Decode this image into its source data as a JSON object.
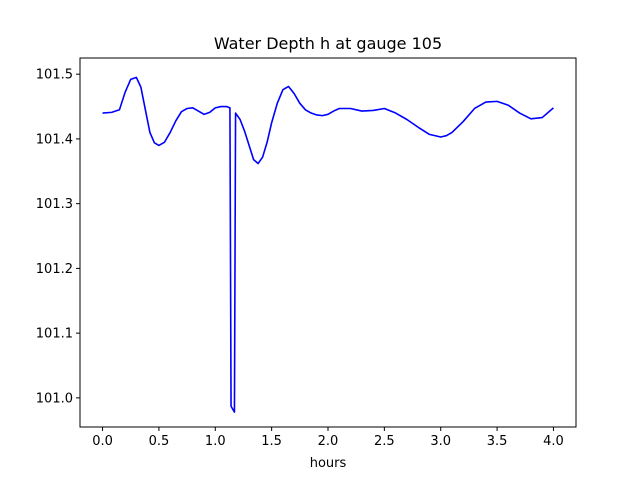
{
  "chart_data": {
    "type": "line",
    "title": "Water Depth h at gauge 105",
    "xlabel": "hours",
    "ylabel": "",
    "xlim": [
      -0.2,
      4.2
    ],
    "ylim": [
      100.955,
      101.525
    ],
    "xticks": [
      0.0,
      0.5,
      1.0,
      1.5,
      2.0,
      2.5,
      3.0,
      3.5,
      4.0
    ],
    "xtick_labels": [
      "0.0",
      "0.5",
      "1.0",
      "1.5",
      "2.0",
      "2.5",
      "3.0",
      "3.5",
      "4.0"
    ],
    "yticks": [
      101.0,
      101.1,
      101.2,
      101.3,
      101.4,
      101.5
    ],
    "ytick_labels": [
      "101.0",
      "101.1",
      "101.2",
      "101.3",
      "101.4",
      "101.5"
    ],
    "grid": false,
    "color": "#0000ff",
    "series": [
      {
        "x": [
          0.0,
          0.08,
          0.15,
          0.2,
          0.25,
          0.3,
          0.34,
          0.38,
          0.42,
          0.46,
          0.5,
          0.55,
          0.6,
          0.65,
          0.7,
          0.75,
          0.8,
          0.85,
          0.9,
          0.95,
          1.0,
          1.05,
          1.1,
          1.13,
          1.14,
          1.17,
          1.18,
          1.18,
          1.22,
          1.26,
          1.3,
          1.34,
          1.38,
          1.42,
          1.46,
          1.5,
          1.55,
          1.6,
          1.65,
          1.7,
          1.75,
          1.8,
          1.85,
          1.9,
          1.95,
          2.0,
          2.05,
          2.1,
          2.2,
          2.3,
          2.4,
          2.5,
          2.6,
          2.7,
          2.8,
          2.9,
          3.0,
          3.05,
          3.1,
          3.2,
          3.3,
          3.4,
          3.5,
          3.6,
          3.7,
          3.8,
          3.9,
          4.0
        ],
        "y": [
          101.44,
          101.441,
          101.445,
          101.472,
          101.492,
          101.495,
          101.48,
          101.445,
          101.41,
          101.394,
          101.39,
          101.395,
          101.41,
          101.428,
          101.442,
          101.447,
          101.448,
          101.443,
          101.438,
          101.441,
          101.448,
          101.45,
          101.45,
          101.448,
          100.987,
          100.978,
          101.44,
          101.44,
          101.43,
          101.412,
          101.39,
          101.368,
          101.362,
          101.372,
          101.395,
          101.425,
          101.455,
          101.476,
          101.481,
          101.47,
          101.455,
          101.445,
          101.44,
          101.437,
          101.436,
          101.438,
          101.443,
          101.447,
          101.447,
          101.443,
          101.444,
          101.447,
          101.44,
          101.43,
          101.418,
          101.407,
          101.403,
          101.405,
          101.41,
          101.427,
          101.447,
          101.457,
          101.458,
          101.452,
          101.44,
          101.431,
          101.433,
          101.448
        ]
      }
    ]
  }
}
